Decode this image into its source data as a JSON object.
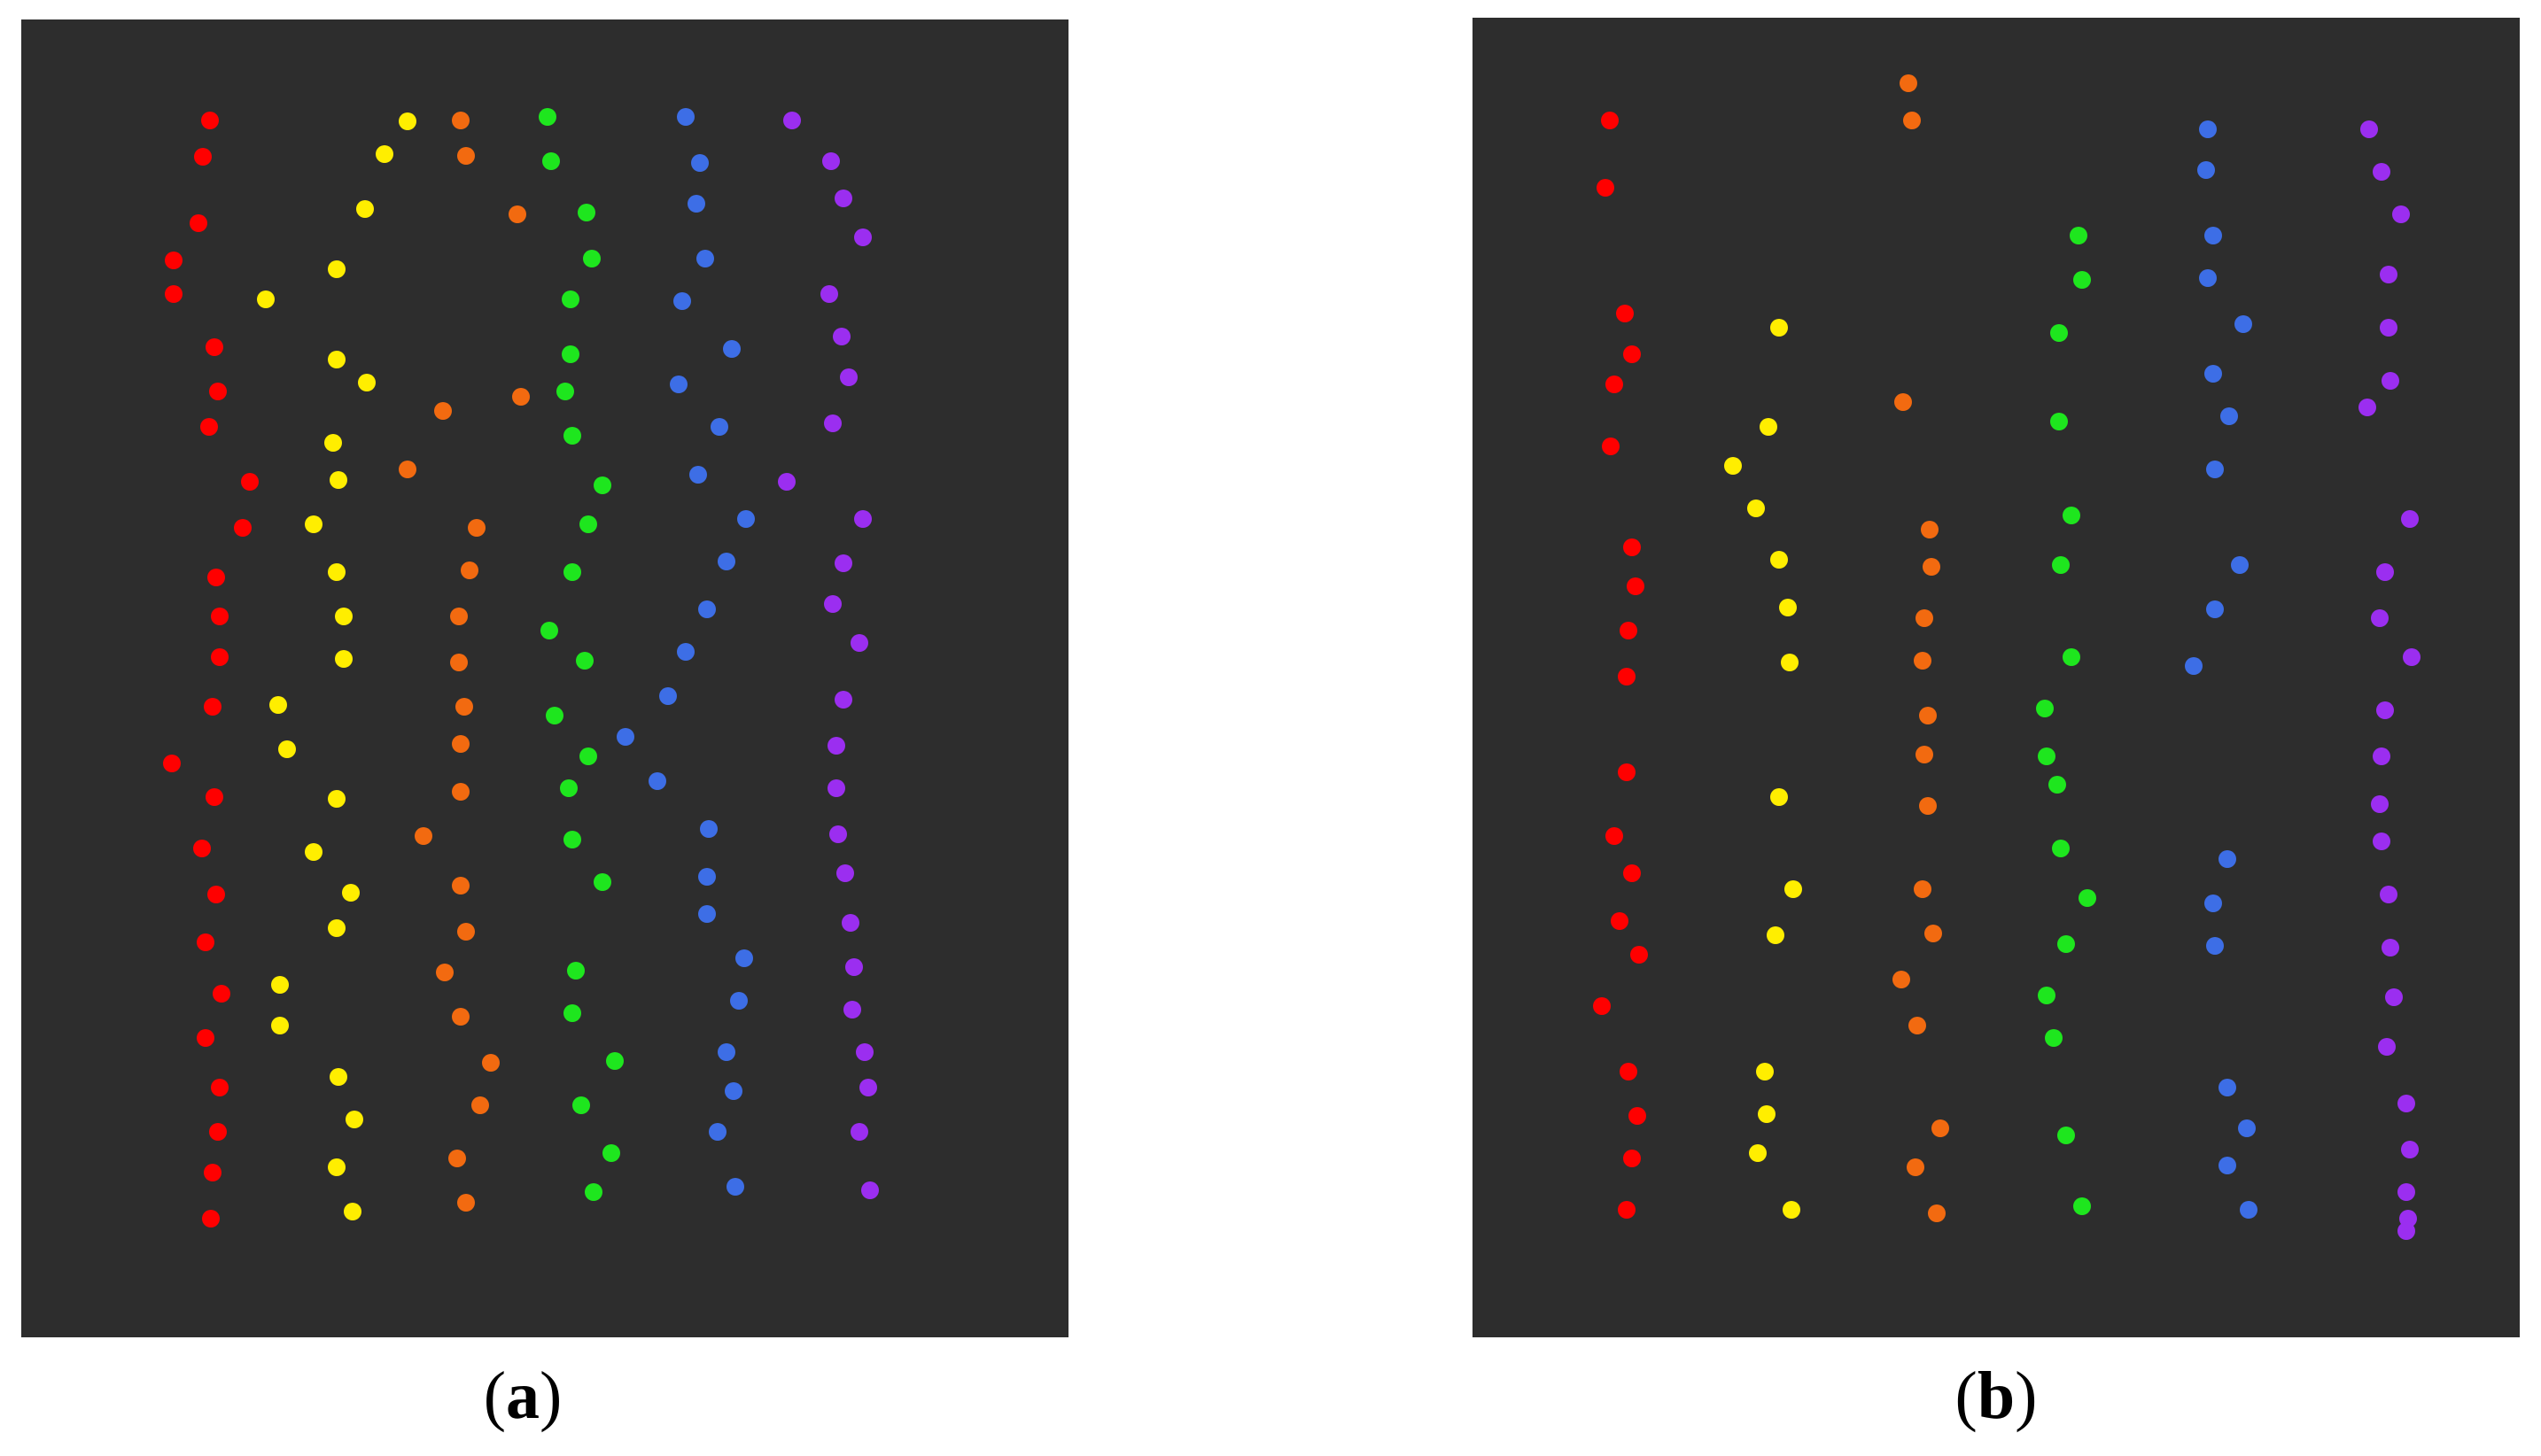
{
  "figure": {
    "panels": [
      {
        "id": "a",
        "label": "a"
      },
      {
        "id": "b",
        "label": "b"
      }
    ]
  },
  "colors": {
    "red": "#ff0000",
    "yellow": "#ffee00",
    "orange": "#f26a10",
    "green": "#1ee61e",
    "blue": "#3d6ee6",
    "purple": "#9b2ef0"
  }
}
